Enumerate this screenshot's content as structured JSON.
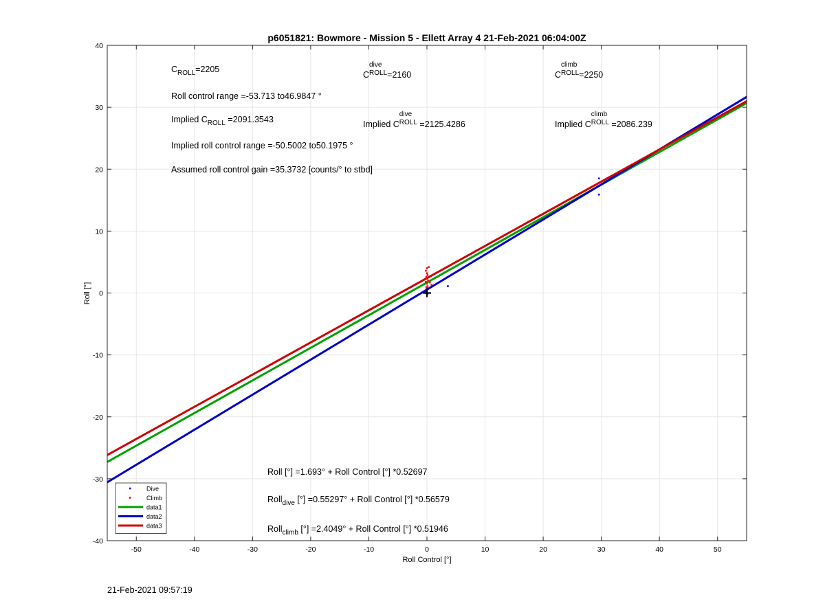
{
  "chart_data": {
    "type": "scatter",
    "title": "p6051821: Bowmore - Mission 5 - Ellett Array 4 21-Feb-2021 06:04:00Z",
    "xlabel": "Roll Control [°]",
    "ylabel": "Roll [°]",
    "xlim": [
      -55,
      55
    ],
    "ylim": [
      -40,
      40
    ],
    "xticks": [
      -50,
      -40,
      -30,
      -20,
      -10,
      0,
      10,
      20,
      30,
      40,
      50
    ],
    "yticks": [
      -40,
      -30,
      -20,
      -10,
      0,
      10,
      20,
      30,
      40
    ],
    "xtick_labels": [
      "-50",
      "-40",
      "-30",
      "-20",
      "-10",
      "0",
      "10",
      "20",
      "30",
      "40",
      "50"
    ],
    "ytick_labels": [
      "-40",
      "-30",
      "-20",
      "-10",
      "0",
      "10",
      "20",
      "30",
      "40"
    ],
    "grid": true,
    "legend_position": "bottom-left",
    "series": [
      {
        "name": "Dive",
        "kind": "points",
        "color": "#0000ff",
        "points": [
          [
            29.6,
            18.5
          ],
          [
            29.6,
            15.9
          ],
          [
            3.6,
            1.1
          ],
          [
            0.0,
            0.5
          ],
          [
            0.0,
            0.2
          ],
          [
            -0.2,
            0.0
          ],
          [
            0.1,
            -0.1
          ],
          [
            0.0,
            0.8
          ],
          [
            -0.3,
            0.3
          ]
        ]
      },
      {
        "name": "Climb",
        "kind": "points",
        "color": "#ff0000",
        "points": [
          [
            0.0,
            4.0
          ],
          [
            0.3,
            4.2
          ],
          [
            -0.2,
            3.6
          ],
          [
            0.0,
            3.2
          ],
          [
            0.1,
            2.9
          ],
          [
            -0.1,
            2.6
          ],
          [
            0.0,
            2.3
          ],
          [
            0.2,
            2.0
          ],
          [
            -0.2,
            1.8
          ],
          [
            0.0,
            1.5
          ],
          [
            0.5,
            1.7
          ],
          [
            0.8,
            1.3
          ],
          [
            0.1,
            1.1
          ],
          [
            -0.1,
            0.9
          ]
        ]
      },
      {
        "name": "data1",
        "kind": "line",
        "color": "#00a000",
        "intercept": 1.693,
        "slope": 0.52697
      },
      {
        "name": "data2",
        "kind": "line",
        "color": "#0000c8",
        "intercept": 0.55297,
        "slope": 0.56579
      },
      {
        "name": "data3",
        "kind": "line",
        "color": "#d00000",
        "intercept": 2.4049,
        "slope": 0.51946
      }
    ],
    "marker": {
      "x": 0,
      "y": 0,
      "symbol": "+"
    }
  },
  "annotations": {
    "c_roll": {
      "base": "C",
      "sub": "ROLL",
      "value": "=2205"
    },
    "c_dive": {
      "base": "C",
      "sup": "dive",
      "sub": "ROLL",
      "value": "=2160"
    },
    "c_climb": {
      "base": "C",
      "sup": "climb",
      "sub": "ROLL",
      "value": "=2250"
    },
    "roll_range": "Roll control range =-53.713 to46.9847 °",
    "implied_c_roll": {
      "prefix": "Implied C",
      "sub": "ROLL",
      "value": " =2091.3543"
    },
    "implied_c_dive": {
      "prefix": "Implied C",
      "sup": "dive",
      "sub": "ROLL",
      "value": " =2125.4286"
    },
    "implied_c_climb": {
      "prefix": "Implied C",
      "sup": "climb",
      "sub": "ROLL",
      "value": " =2086.239"
    },
    "implied_range": "Implied roll control range =-50.5002 to50.1975 °",
    "gain": "Assumed roll control gain =35.3732 [counts/° to stbd]",
    "fit_all": "Roll [°] =1.693° + Roll Control [°] *0.52697",
    "fit_dive": {
      "base": "Roll",
      "sub": "dive",
      "rest": " [°] =0.55297° + Roll Control [°] *0.56579"
    },
    "fit_climb": {
      "base": "Roll",
      "sub": "climb",
      "rest": " [°] =2.4049° + Roll Control [°] *0.51946"
    }
  },
  "timestamp": "21-Feb-2021 09:57:19"
}
